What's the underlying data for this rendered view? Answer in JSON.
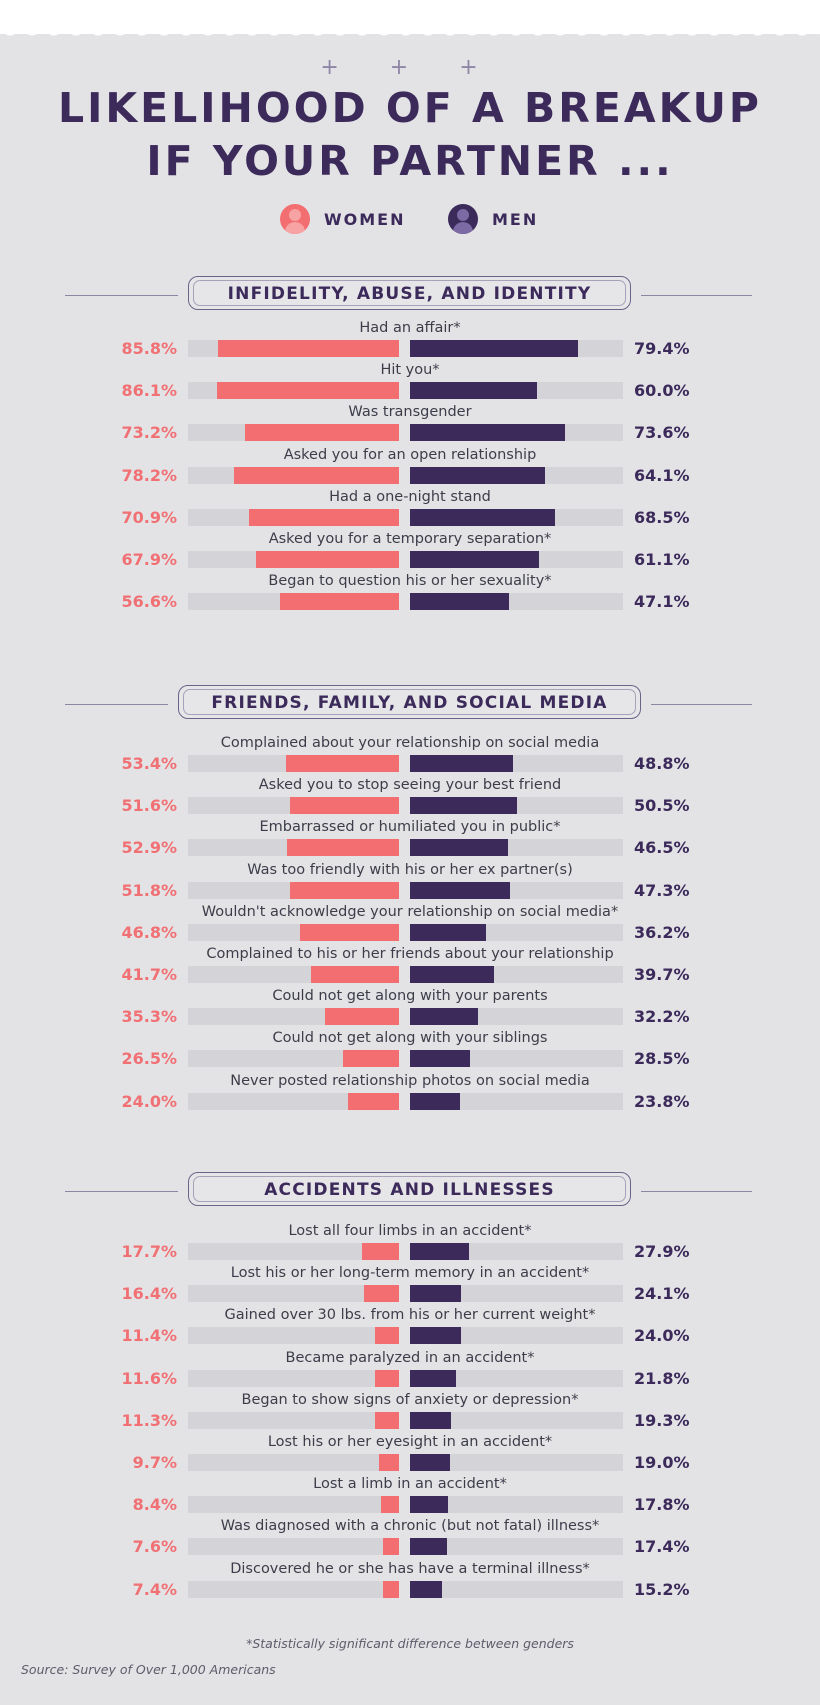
{
  "title_line1": "LIKELIHOOD OF A BREAKUP",
  "title_line2": "IF YOUR PARTNER ...",
  "decoration": "+ + +",
  "legend": {
    "women": "WOMEN",
    "men": "MEN"
  },
  "colors": {
    "women": "#f36e70",
    "men": "#3b2a5a",
    "track": "#d4d3d8"
  },
  "footnote": "*Statistically significant difference between genders",
  "source": "Source: Survey of Over 1,000 Americans",
  "chart_data": {
    "type": "bar",
    "orientation": "horizontal-diverging",
    "unit": "%",
    "xlim": [
      0,
      100
    ],
    "series": [
      {
        "name": "WOMEN",
        "color": "#f36e70"
      },
      {
        "name": "MEN",
        "color": "#3b2a5a"
      }
    ],
    "sections": [
      {
        "title": "INFIDELITY, ABUSE, AND IDENTITY",
        "rows": [
          {
            "label": "Had an affair*",
            "women": 85.8,
            "men": 79.4,
            "women_text": "85.8%",
            "men_text": "79.4%"
          },
          {
            "label": "Hit you*",
            "women": 86.1,
            "men": 60.0,
            "women_text": "86.1%",
            "men_text": "60.0%"
          },
          {
            "label": "Was transgender",
            "women": 73.2,
            "men": 73.6,
            "women_text": "73.2%",
            "men_text": "73.6%"
          },
          {
            "label": "Asked you for an open relationship",
            "women": 78.2,
            "men": 64.1,
            "women_text": "78.2%",
            "men_text": "64.1%"
          },
          {
            "label": "Had a one-night stand",
            "women": 70.9,
            "men": 68.5,
            "women_text": "70.9%",
            "men_text": "68.5%"
          },
          {
            "label": "Asked you for a temporary separation*",
            "women": 67.9,
            "men": 61.1,
            "women_text": "67.9%",
            "men_text": "61.1%"
          },
          {
            "label": "Began to question his or her sexuality*",
            "women": 56.6,
            "men": 47.1,
            "women_text": "56.6%",
            "men_text": "47.1%"
          }
        ]
      },
      {
        "title": "FRIENDS, FAMILY, AND SOCIAL MEDIA",
        "rows": [
          {
            "label": "Complained about your relationship on social media",
            "women": 53.4,
            "men": 48.8,
            "women_text": "53.4%",
            "men_text": "48.8%"
          },
          {
            "label": "Asked you to stop seeing your best friend",
            "women": 51.6,
            "men": 50.5,
            "women_text": "51.6%",
            "men_text": "50.5%"
          },
          {
            "label": "Embarrassed or humiliated you in public*",
            "women": 52.9,
            "men": 46.5,
            "women_text": "52.9%",
            "men_text": "46.5%"
          },
          {
            "label": "Was too friendly with his or her ex partner(s)",
            "women": 51.8,
            "men": 47.3,
            "women_text": "51.8%",
            "men_text": "47.3%"
          },
          {
            "label": "Wouldn't acknowledge your relationship on social media*",
            "women": 46.8,
            "men": 36.2,
            "women_text": "46.8%",
            "men_text": "36.2%"
          },
          {
            "label": "Complained to his or her friends about your relationship",
            "women": 41.7,
            "men": 39.7,
            "women_text": "41.7%",
            "men_text": "39.7%"
          },
          {
            "label": "Could not get along with your parents",
            "women": 35.3,
            "men": 32.2,
            "women_text": "35.3%",
            "men_text": "32.2%"
          },
          {
            "label": "Could not get along with your siblings",
            "women": 26.5,
            "men": 28.5,
            "women_text": "26.5%",
            "men_text": "28.5%"
          },
          {
            "label": "Never posted relationship photos on social media",
            "women": 24.0,
            "men": 23.8,
            "women_text": "24.0%",
            "men_text": "23.8%"
          }
        ]
      },
      {
        "title": "ACCIDENTS AND ILLNESSES",
        "rows": [
          {
            "label": "Lost all four limbs in an accident*",
            "women": 17.7,
            "men": 27.9,
            "women_text": "17.7%",
            "men_text": "27.9%"
          },
          {
            "label": "Lost his or her long-term memory in an accident*",
            "women": 16.4,
            "men": 24.1,
            "women_text": "16.4%",
            "men_text": "24.1%"
          },
          {
            "label": "Gained over 30 lbs. from his or her current weight*",
            "women": 11.4,
            "men": 24.0,
            "women_text": "11.4%",
            "men_text": "24.0%"
          },
          {
            "label": "Became paralyzed in an accident*",
            "women": 11.6,
            "men": 21.8,
            "women_text": "11.6%",
            "men_text": "21.8%"
          },
          {
            "label": "Began to show signs of anxiety or depression*",
            "women": 11.3,
            "men": 19.3,
            "women_text": "11.3%",
            "men_text": "19.3%"
          },
          {
            "label": "Lost his or her eyesight in an accident*",
            "women": 9.7,
            "men": 19.0,
            "women_text": "9.7%",
            "men_text": "19.0%"
          },
          {
            "label": "Lost a limb in an accident*",
            "women": 8.4,
            "men": 17.8,
            "women_text": "8.4%",
            "men_text": "17.8%"
          },
          {
            "label": "Was diagnosed with a chronic (but not fatal) illness*",
            "women": 7.6,
            "men": 17.4,
            "women_text": "7.6%",
            "men_text": "17.4%"
          },
          {
            "label": "Discovered he or she has have a terminal illness*",
            "women": 7.4,
            "men": 15.2,
            "women_text": "7.4%",
            "men_text": "15.2%"
          }
        ]
      }
    ]
  }
}
